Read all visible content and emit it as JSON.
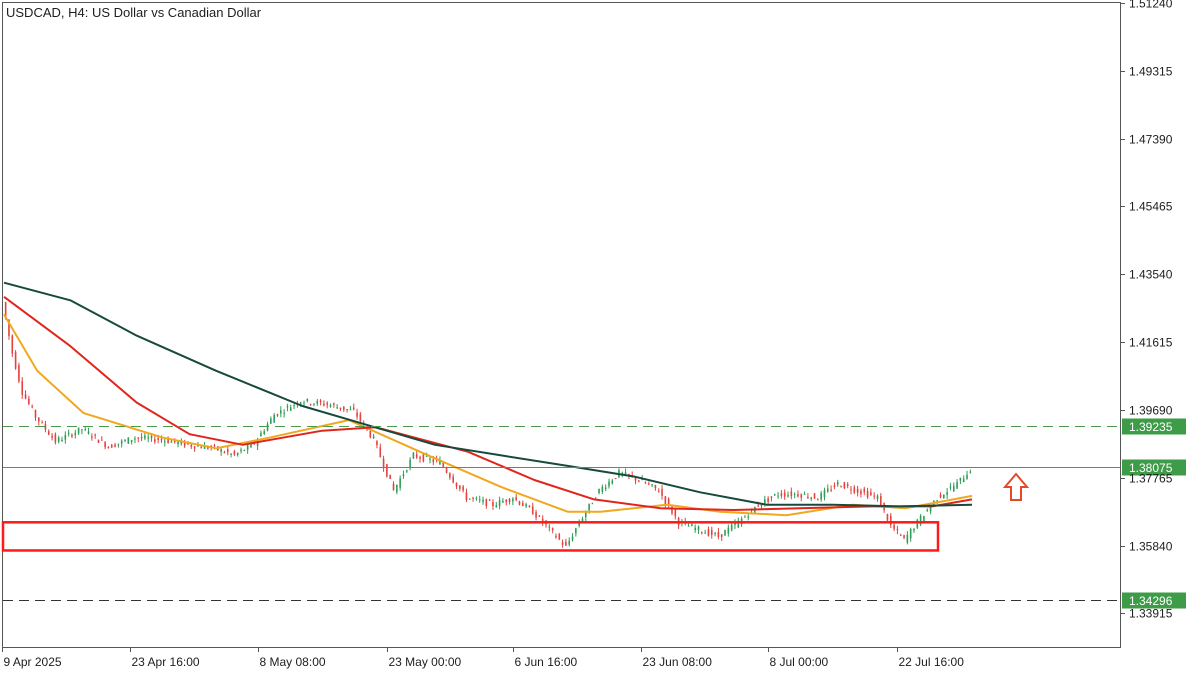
{
  "header": {
    "title": "USDCAD, H4:  US Dollar vs Canadian Dollar"
  },
  "colors": {
    "background": "#ffffff",
    "frame": "#555555",
    "bull_candle": "#2e9e56",
    "bear_candle": "#e3423d",
    "ma_fast": "#f0a81e",
    "ma_mid": "#e0251c",
    "ma_slow": "#174a3c",
    "level_line": "#4c9a4c",
    "tag_bg": "#3e9b47",
    "support_zone": "#ff1a1a",
    "arrow": "#e34a2a"
  },
  "chart_data": {
    "type": "candlestick",
    "symbol": "USDCAD",
    "timeframe": "H4",
    "description": "US Dollar vs Canadian Dollar",
    "ylim": [
      1.3296,
      1.5124
    ],
    "y_ticks": [
      "1.51240",
      "1.49315",
      "1.47390",
      "1.45465",
      "1.43540",
      "1.41615",
      "1.39690",
      "1.37765",
      "1.35840",
      "1.33915"
    ],
    "x_ticks": [
      "9 Apr 2025",
      "23 Apr 16:00",
      "8 May 08:00",
      "23 May 00:00",
      "6 Jun 16:00",
      "23 Jun 08:00",
      "8 Jul 00:00",
      "22 Jul 16:00"
    ],
    "price_path": [
      [
        0,
        1.4275
      ],
      [
        3,
        1.413
      ],
      [
        6,
        1.402
      ],
      [
        10,
        1.395
      ],
      [
        16,
        1.388
      ],
      [
        24,
        1.3915
      ],
      [
        32,
        1.3865
      ],
      [
        40,
        1.389
      ],
      [
        48,
        1.3885
      ],
      [
        56,
        1.387
      ],
      [
        64,
        1.386
      ],
      [
        70,
        1.384
      ],
      [
        76,
        1.3875
      ],
      [
        82,
        1.3955
      ],
      [
        90,
        1.3995
      ],
      [
        98,
        1.3985
      ],
      [
        106,
        1.3965
      ],
      [
        112,
        1.3885
      ],
      [
        118,
        1.374
      ],
      [
        124,
        1.384
      ],
      [
        132,
        1.382
      ],
      [
        140,
        1.372
      ],
      [
        148,
        1.37
      ],
      [
        154,
        1.372
      ],
      [
        160,
        1.368
      ],
      [
        166,
        1.362
      ],
      [
        170,
        1.358
      ],
      [
        174,
        1.365
      ],
      [
        180,
        1.374
      ],
      [
        186,
        1.379
      ],
      [
        192,
        1.377
      ],
      [
        198,
        1.374
      ],
      [
        204,
        1.365
      ],
      [
        210,
        1.363
      ],
      [
        216,
        1.361
      ],
      [
        222,
        1.365
      ],
      [
        228,
        1.37
      ],
      [
        234,
        1.373
      ],
      [
        240,
        1.373
      ],
      [
        246,
        1.372
      ],
      [
        252,
        1.376
      ],
      [
        258,
        1.374
      ],
      [
        264,
        1.372
      ],
      [
        268,
        1.364
      ],
      [
        272,
        1.36
      ],
      [
        276,
        1.365
      ],
      [
        282,
        1.372
      ],
      [
        288,
        1.376
      ],
      [
        292,
        1.38
      ]
    ],
    "moving_averages": [
      {
        "color": "#f0a81e",
        "values": [
          [
            0,
            1.424
          ],
          [
            10,
            1.408
          ],
          [
            24,
            1.396
          ],
          [
            48,
            1.389
          ],
          [
            64,
            1.386
          ],
          [
            80,
            1.389
          ],
          [
            104,
            1.394
          ],
          [
            128,
            1.384
          ],
          [
            150,
            1.375
          ],
          [
            170,
            1.368
          ],
          [
            180,
            1.368
          ],
          [
            200,
            1.37
          ],
          [
            216,
            1.368
          ],
          [
            236,
            1.367
          ],
          [
            256,
            1.37
          ],
          [
            272,
            1.369
          ],
          [
            292,
            1.3725
          ]
        ]
      },
      {
        "color": "#e0251c",
        "values": [
          [
            0,
            1.429
          ],
          [
            20,
            1.415
          ],
          [
            40,
            1.399
          ],
          [
            56,
            1.39
          ],
          [
            72,
            1.387
          ],
          [
            96,
            1.391
          ],
          [
            112,
            1.392
          ],
          [
            140,
            1.385
          ],
          [
            160,
            1.377
          ],
          [
            178,
            1.3715
          ],
          [
            198,
            1.369
          ],
          [
            220,
            1.3685
          ],
          [
            240,
            1.369
          ],
          [
            262,
            1.3695
          ],
          [
            280,
            1.3695
          ],
          [
            292,
            1.3715
          ]
        ]
      },
      {
        "color": "#174a3c",
        "values": [
          [
            0,
            1.433
          ],
          [
            20,
            1.428
          ],
          [
            40,
            1.418
          ],
          [
            64,
            1.408
          ],
          [
            90,
            1.398
          ],
          [
            110,
            1.3925
          ],
          [
            130,
            1.387
          ],
          [
            150,
            1.384
          ],
          [
            170,
            1.381
          ],
          [
            190,
            1.378
          ],
          [
            210,
            1.3735
          ],
          [
            230,
            1.37
          ],
          [
            250,
            1.37
          ],
          [
            270,
            1.3695
          ],
          [
            292,
            1.37
          ]
        ]
      }
    ],
    "horizontal_levels": [
      {
        "value": 1.39235,
        "label": "1.39235",
        "style": "dashed"
      },
      {
        "value": 1.38075,
        "label": "1.38075",
        "style": "solid"
      },
      {
        "value": 1.34296,
        "label": "1.34296",
        "style": "dashed"
      }
    ],
    "support_zone": {
      "from": 1.357,
      "to": 1.365
    },
    "annotation": "up-arrow",
    "grid": false,
    "legend": "none"
  }
}
